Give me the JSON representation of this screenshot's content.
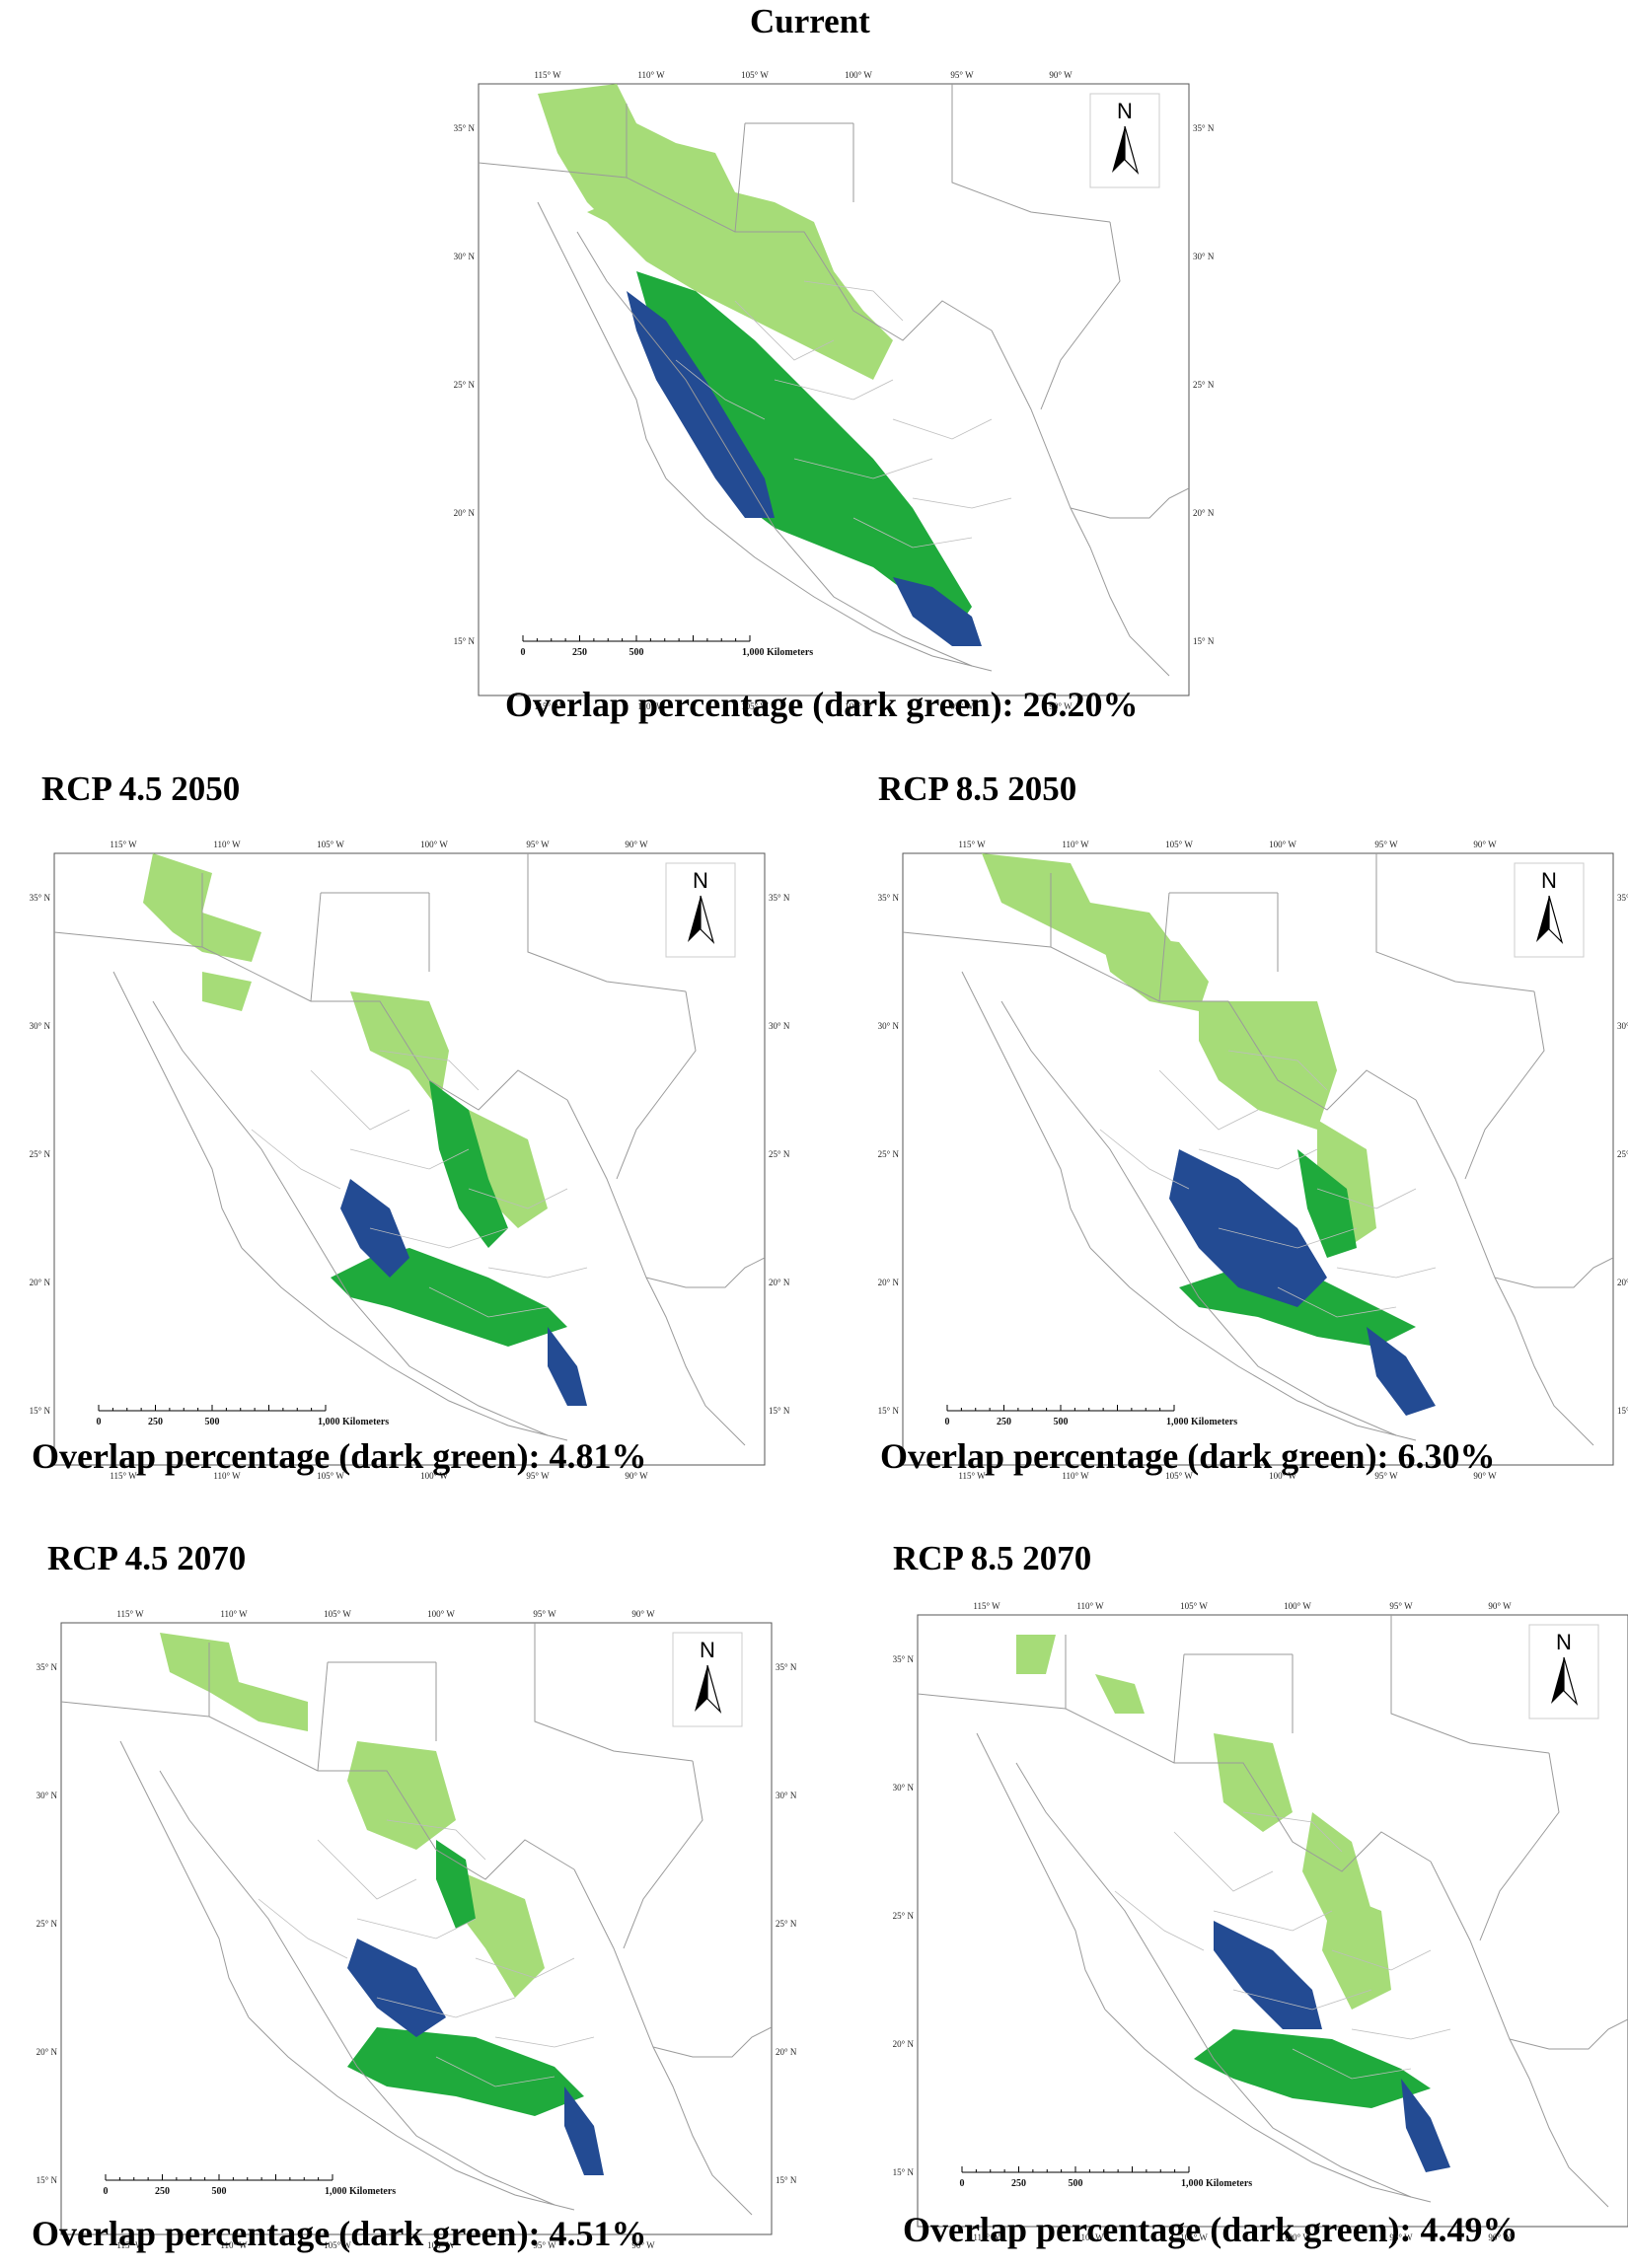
{
  "panels": [
    {
      "id": "current",
      "title": "Current",
      "caption": "Overlap percentage (dark green): 26.20%",
      "lon_labels": [
        "115° W",
        "110° W",
        "105° W",
        "100° W",
        "95° W",
        "90° W"
      ],
      "lat_labels": [
        "35° N",
        "30° N",
        "25° N",
        "20° N",
        "15° N"
      ],
      "north_label": "N",
      "scale_labels": [
        "0",
        "250",
        "500",
        "1,000 Kilometers"
      ],
      "overlap_percent": 26.2
    },
    {
      "id": "rcp45-2050",
      "title": "RCP 4.5 2050",
      "caption": "Overlap percentage (dark green): 4.81%",
      "lon_labels": [
        "115° W",
        "110° W",
        "105° W",
        "100° W",
        "95° W",
        "90° W"
      ],
      "lat_labels": [
        "35° N",
        "30° N",
        "25° N",
        "20° N",
        "15° N"
      ],
      "north_label": "N",
      "scale_labels": [
        "0",
        "250",
        "500",
        "1,000 Kilometers"
      ],
      "overlap_percent": 4.81
    },
    {
      "id": "rcp85-2050",
      "title": "RCP 8.5 2050",
      "caption": "Overlap percentage (dark green): 6.30%",
      "lon_labels": [
        "115° W",
        "110° W",
        "105° W",
        "100° W",
        "95° W",
        "90° W"
      ],
      "lat_labels": [
        "35° N",
        "30° N",
        "25° N",
        "20° N",
        "15° N"
      ],
      "north_label": "N",
      "scale_labels": [
        "0",
        "250",
        "500",
        "1,000 Kilometers"
      ],
      "overlap_percent": 6.3
    },
    {
      "id": "rcp45-2070",
      "title": "RCP 4.5 2070",
      "caption": "Overlap percentage (dark green): 4.51%",
      "lon_labels": [
        "115° W",
        "110° W",
        "105° W",
        "100° W",
        "95° W",
        "90° W"
      ],
      "lat_labels": [
        "35° N",
        "30° N",
        "25° N",
        "20° N",
        "15° N"
      ],
      "north_label": "N",
      "scale_labels": [
        "0",
        "250",
        "500",
        "1,000 Kilometers"
      ],
      "overlap_percent": 4.51
    },
    {
      "id": "rcp85-2070",
      "title": "RCP 8.5 2070",
      "caption": "Overlap percentage (dark green): 4.49%",
      "lon_labels": [
        "115° W",
        "110° W",
        "105° W",
        "100° W",
        "95° W",
        "90° W"
      ],
      "lat_labels": [
        "35° N",
        "30° N",
        "25° N",
        "20° N",
        "15° N"
      ],
      "north_label": "N",
      "scale_labels": [
        "0",
        "250",
        "500",
        "1,000 Kilometers"
      ],
      "overlap_percent": 4.49
    }
  ],
  "colors": {
    "light_green": "#a6dc78",
    "dark_green": "#1faa3c",
    "blue": "#234b93",
    "border": "#9a9a9a"
  }
}
